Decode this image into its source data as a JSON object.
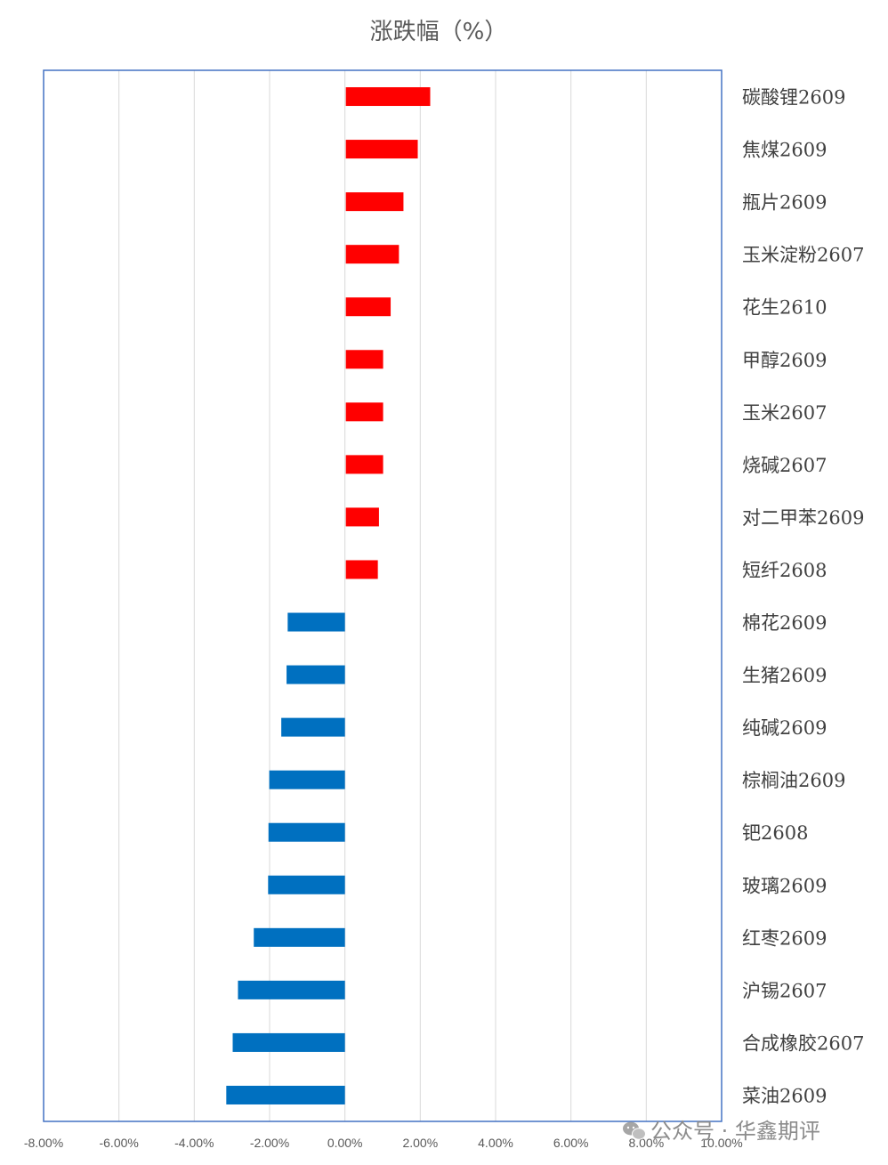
{
  "chart_data": {
    "type": "bar",
    "orientation": "horizontal",
    "title": "涨跌幅（%）",
    "categories": [
      "碳酸锂2609",
      "焦煤2609",
      "瓶片2609",
      "玉米淀粉2607",
      "花生2610",
      "甲醇2609",
      "玉米2607",
      "烧碱2607",
      "对二甲苯2609",
      "短纤2608",
      "棉花2609",
      "生猪2609",
      "纯碱2609",
      "棕榈油2609",
      "钯2608",
      "玻璃2609",
      "红枣2609",
      "沪锡2607",
      "合成橡胶2607",
      "菜油2609"
    ],
    "values": [
      2.24,
      1.91,
      1.53,
      1.41,
      1.19,
      0.99,
      0.99,
      0.99,
      0.88,
      0.85,
      -1.52,
      -1.55,
      -1.69,
      -2.01,
      -2.03,
      -2.04,
      -2.42,
      -2.84,
      -2.98,
      -3.15
    ],
    "xlim": [
      -8,
      10
    ],
    "xticks": [
      "-8.00%",
      "-6.00%",
      "-4.00%",
      "-2.00%",
      "0.00%",
      "2.00%",
      "4.00%",
      "6.00%",
      "8.00%",
      "10.00%"
    ],
    "grid": true,
    "colors": {
      "positive": "#ff0000",
      "negative": "#0070c0",
      "frame": "#4472c4"
    }
  },
  "watermark": {
    "text": "公众号 · 华鑫期评",
    "icon": "wechat-icon"
  }
}
